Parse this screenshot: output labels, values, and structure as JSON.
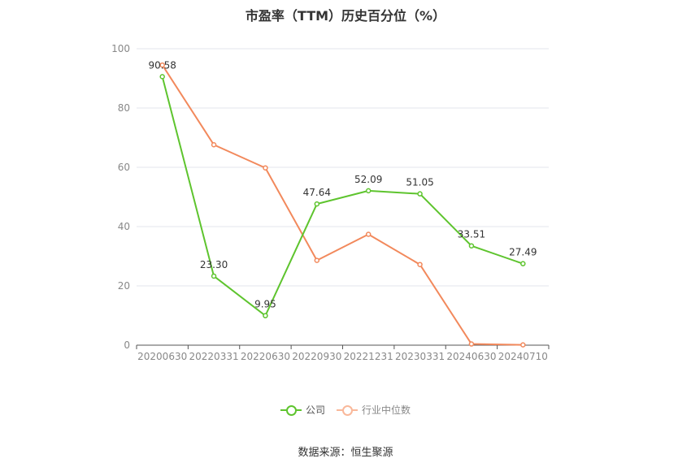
{
  "chart_data": {
    "type": "line",
    "title": "市盈率（TTM）历史百分位（%）",
    "categories": [
      "20200630",
      "20220331",
      "20220630",
      "20220930",
      "20221231",
      "20230331",
      "20240630",
      "20240710"
    ],
    "ylim": [
      0,
      100
    ],
    "yticks": [
      0,
      20,
      40,
      60,
      80,
      100
    ],
    "grid": true,
    "legend_position": "bottom",
    "series": [
      {
        "name": "公司",
        "color": "#5ec42e",
        "values": [
          90.58,
          23.3,
          9.95,
          47.64,
          52.09,
          51.05,
          33.51,
          27.49
        ],
        "labels": [
          "90.58",
          "23.30",
          "9.95",
          "47.64",
          "52.09",
          "51.05",
          "33.51",
          "27.49"
        ]
      },
      {
        "name": "行业中位数",
        "color": "#f2895c",
        "values": [
          94.5,
          67.6,
          59.8,
          28.6,
          37.4,
          27.2,
          0.4,
          0.1
        ]
      }
    ]
  },
  "source_text": "数据来源：恒生聚源"
}
